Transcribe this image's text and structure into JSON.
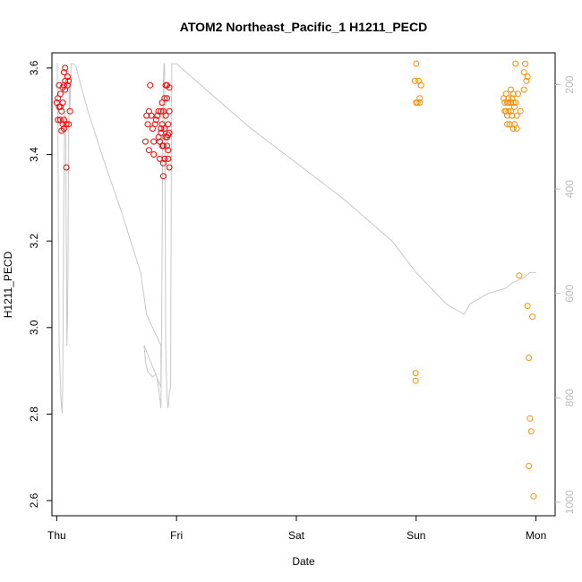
{
  "chart_data": {
    "type": "scatter",
    "title": "ATOM2 Northeast_Pacific_1 H1211_PECD",
    "xlabel": "Date",
    "ylabel": "H1211_PECD",
    "x_ticks": [
      "Thu",
      "Fri",
      "Sat",
      "Sun",
      "Mon"
    ],
    "xlim": [
      -0.04,
      4.16
    ],
    "ylim": [
      2.565,
      3.635
    ],
    "y_ticks": [
      "2.6",
      "2.8",
      "3.0",
      "3.2",
      "3.4",
      "3.6"
    ],
    "y2_ticks": [
      "200",
      "400",
      "600",
      "800",
      "1000"
    ],
    "y2lim": [
      1026,
      139
    ],
    "grid": false,
    "series": [
      {
        "color": "#ff0000",
        "points": [
          [
            0.0,
            3.52
          ],
          [
            0.01,
            3.48
          ],
          [
            0.01,
            3.53
          ],
          [
            0.02,
            3.51
          ],
          [
            0.02,
            3.56
          ],
          [
            0.03,
            3.48
          ],
          [
            0.03,
            3.54
          ],
          [
            0.03,
            3.51
          ],
          [
            0.04,
            3.5
          ],
          [
            0.04,
            3.455
          ],
          [
            0.05,
            3.47
          ],
          [
            0.05,
            3.52
          ],
          [
            0.05,
            3.555
          ],
          [
            0.06,
            3.59
          ],
          [
            0.06,
            3.56
          ],
          [
            0.06,
            3.48
          ],
          [
            0.06,
            3.46
          ],
          [
            0.07,
            3.6
          ],
          [
            0.07,
            3.55
          ],
          [
            0.07,
            3.57
          ],
          [
            0.08,
            3.47
          ],
          [
            0.08,
            3.37
          ],
          [
            0.09,
            3.58
          ],
          [
            0.09,
            3.56
          ],
          [
            0.1,
            3.57
          ],
          [
            0.1,
            3.47
          ],
          [
            0.11,
            3.5
          ],
          [
            0.74,
            3.43
          ],
          [
            0.75,
            3.49
          ],
          [
            0.76,
            3.47
          ],
          [
            0.77,
            3.41
          ],
          [
            0.77,
            3.5
          ],
          [
            0.78,
            3.56
          ],
          [
            0.79,
            3.49
          ],
          [
            0.8,
            3.46
          ],
          [
            0.81,
            3.43
          ],
          [
            0.81,
            3.4
          ],
          [
            0.82,
            3.47
          ],
          [
            0.83,
            3.48
          ],
          [
            0.84,
            3.49
          ],
          [
            0.85,
            3.44
          ],
          [
            0.85,
            3.5
          ],
          [
            0.86,
            3.39
          ],
          [
            0.86,
            3.43
          ],
          [
            0.87,
            3.5
          ],
          [
            0.87,
            3.46
          ],
          [
            0.87,
            3.45
          ],
          [
            0.88,
            3.42
          ],
          [
            0.88,
            3.47
          ],
          [
            0.88,
            3.52
          ],
          [
            0.89,
            3.38
          ],
          [
            0.89,
            3.35
          ],
          [
            0.89,
            3.42
          ],
          [
            0.89,
            3.5
          ],
          [
            0.9,
            3.53
          ],
          [
            0.9,
            3.39
          ],
          [
            0.9,
            3.46
          ],
          [
            0.91,
            3.44
          ],
          [
            0.91,
            3.49
          ],
          [
            0.91,
            3.56
          ],
          [
            0.92,
            3.56
          ],
          [
            0.92,
            3.53
          ],
          [
            0.92,
            3.44
          ],
          [
            0.92,
            3.42
          ],
          [
            0.93,
            3.39
          ],
          [
            0.93,
            3.47
          ],
          [
            0.93,
            3.41
          ],
          [
            0.93,
            3.445
          ],
          [
            0.94,
            3.37
          ],
          [
            0.94,
            3.45
          ],
          [
            0.94,
            3.555
          ],
          [
            0.94,
            3.5
          ]
        ]
      },
      {
        "color": "#ff8c00",
        "points": [
          [
            2.99,
            3.57
          ],
          [
            3.0,
            3.61
          ],
          [
            3.0,
            3.52
          ],
          [
            3.01,
            3.52
          ],
          [
            3.02,
            3.57
          ],
          [
            3.03,
            3.53
          ],
          [
            3.03,
            3.52
          ],
          [
            3.04,
            3.56
          ],
          [
            3.04,
            3.56
          ],
          [
            2.995,
            2.895
          ],
          [
            2.995,
            2.877
          ],
          [
            3.73,
            3.53
          ],
          [
            3.74,
            3.52
          ],
          [
            3.74,
            3.5
          ],
          [
            3.75,
            3.54
          ],
          [
            3.75,
            3.5
          ],
          [
            3.76,
            3.49
          ],
          [
            3.76,
            3.52
          ],
          [
            3.76,
            3.47
          ],
          [
            3.77,
            3.5
          ],
          [
            3.77,
            3.53
          ],
          [
            3.77,
            3.52
          ],
          [
            3.78,
            3.47
          ],
          [
            3.79,
            3.52
          ],
          [
            3.79,
            3.55
          ],
          [
            3.79,
            3.5
          ],
          [
            3.8,
            3.49
          ],
          [
            3.8,
            3.53
          ],
          [
            3.81,
            3.52
          ],
          [
            3.81,
            3.54
          ],
          [
            3.81,
            3.46
          ],
          [
            3.82,
            3.47
          ],
          [
            3.82,
            3.51
          ],
          [
            3.83,
            3.61
          ],
          [
            3.83,
            3.52
          ],
          [
            3.84,
            3.46
          ],
          [
            3.84,
            3.49
          ],
          [
            3.85,
            3.54
          ],
          [
            3.86,
            3.12
          ],
          [
            3.87,
            3.5
          ],
          [
            3.9,
            3.59
          ],
          [
            3.9,
            3.55
          ],
          [
            3.91,
            3.61
          ],
          [
            3.92,
            3.57
          ],
          [
            3.93,
            3.58
          ],
          [
            3.93,
            3.05
          ],
          [
            3.94,
            2.93
          ],
          [
            3.95,
            2.79
          ],
          [
            3.96,
            2.76
          ],
          [
            3.97,
            3.025
          ],
          [
            3.94,
            2.68
          ],
          [
            3.98,
            2.61
          ]
        ]
      }
    ],
    "depth_trace": {
      "color": "#c8c8c8",
      "x": [
        0.0,
        0.005,
        0.01,
        0.02,
        0.035,
        0.045,
        0.05,
        0.055,
        0.06,
        0.065,
        0.07,
        0.075,
        0.08,
        0.085,
        0.09,
        0.095,
        0.1,
        0.105,
        0.11,
        0.12,
        0.13,
        0.135,
        0.14,
        0.16,
        0.2,
        0.26,
        0.4,
        0.55,
        0.7,
        0.75,
        0.87,
        0.87,
        0.73,
        0.74,
        0.76,
        0.8,
        0.83,
        0.85,
        0.86,
        0.87,
        0.875,
        0.88,
        0.885,
        0.89,
        0.895,
        0.9,
        0.91,
        0.92,
        0.93,
        0.94,
        0.95,
        0.96,
        0.965,
        0.97,
        1.0,
        1.2,
        1.6,
        2.0,
        2.4,
        2.8,
        3.0,
        3.25,
        3.4,
        3.45,
        3.6,
        3.75,
        3.8,
        3.9,
        3.95,
        4.0
      ],
      "y": [
        160,
        160,
        300,
        690,
        800,
        830,
        780,
        600,
        400,
        300,
        250,
        300,
        500,
        700,
        650,
        500,
        300,
        200,
        250,
        160,
        160,
        160,
        160,
        165,
        200,
        250,
        350,
        450,
        560,
        640,
        700,
        780,
        700,
        730,
        750,
        760,
        755,
        780,
        800,
        820,
        700,
        500,
        300,
        200,
        160,
        160,
        700,
        800,
        820,
        790,
        780,
        160,
        160,
        160,
        160,
        200,
        280,
        350,
        420,
        500,
        560,
        620,
        640,
        620,
        600,
        590,
        580,
        570,
        560,
        560
      ]
    }
  }
}
